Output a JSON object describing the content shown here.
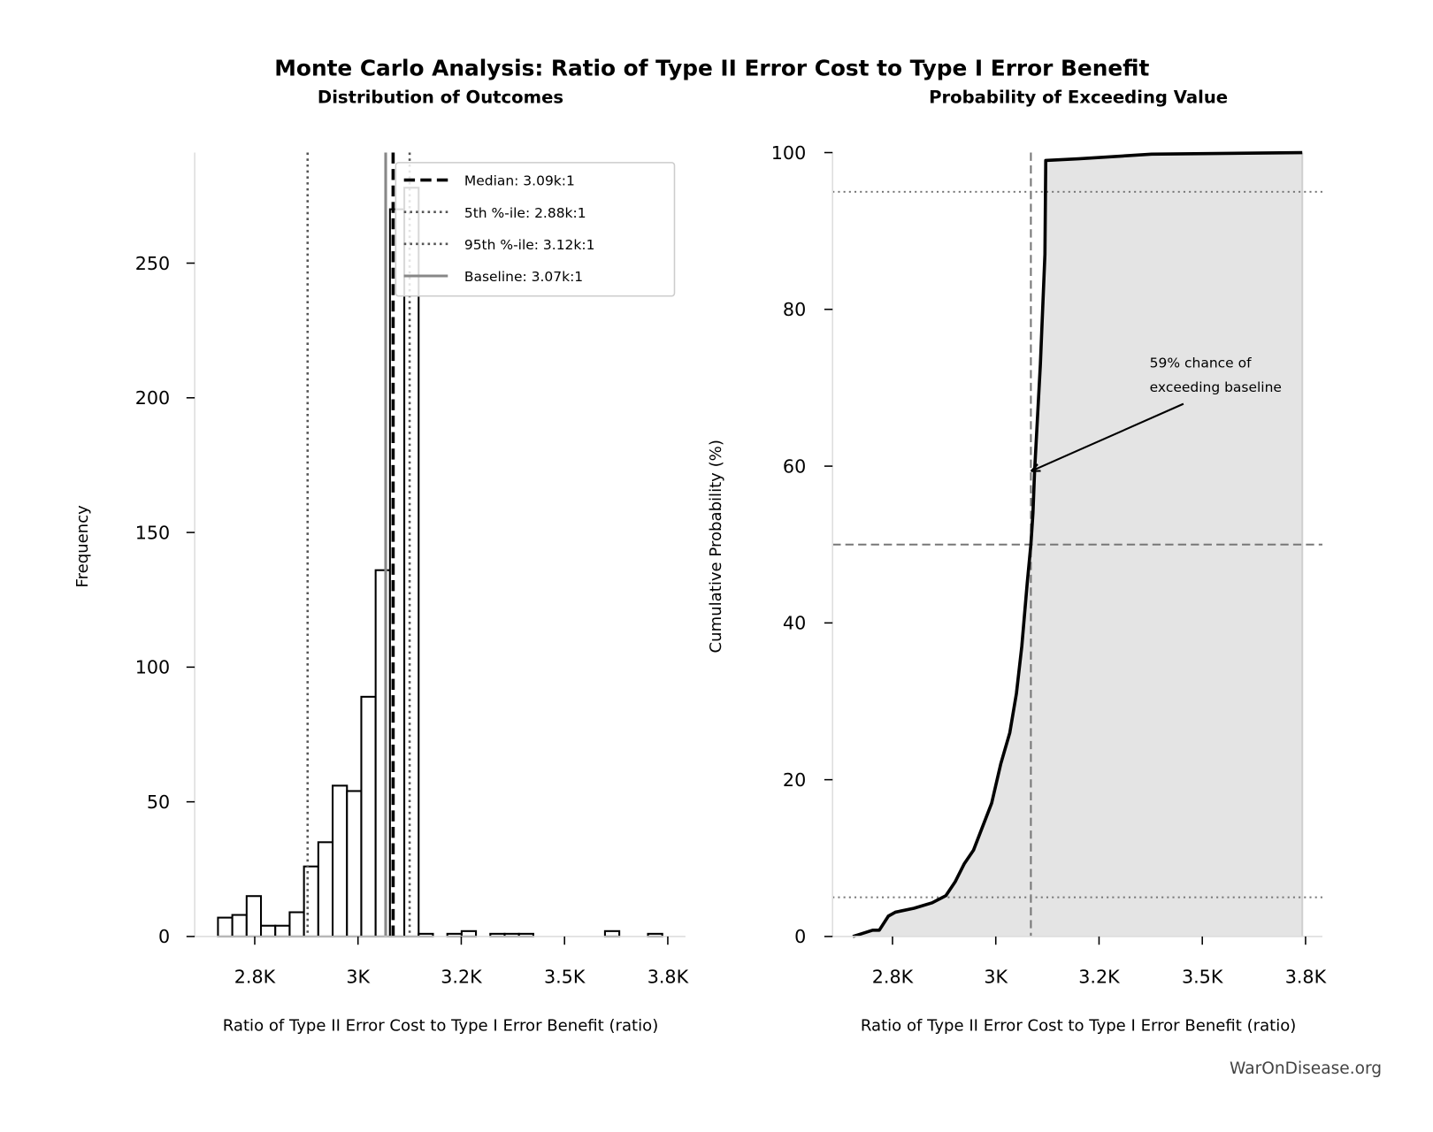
{
  "title": "Monte Carlo Analysis: Ratio of Type II Error Cost to Type I Error Benefit",
  "watermark": "WarOnDisease.org",
  "chart_data": [
    {
      "type": "bar",
      "subtype": "histogram",
      "title": "Distribution of Outcomes",
      "xlabel": "Ratio of Type II Error Cost to Type I Error Benefit (ratio)",
      "ylabel": "Frequency",
      "bin_start": 2661,
      "bin_width": 34.7,
      "counts": [
        7,
        8,
        15,
        4,
        4,
        9,
        26,
        35,
        56,
        54,
        89,
        136,
        270,
        278,
        1,
        0,
        1,
        2,
        0,
        1,
        1,
        1,
        0,
        0,
        0,
        0,
        0,
        2,
        0,
        0,
        1
      ],
      "xlim": [
        2605,
        3785
      ],
      "ylim": [
        0,
        290
      ],
      "xticks": [
        2750,
        3000,
        3250,
        3500,
        3750
      ],
      "xtick_labels": [
        "2.8K",
        "3K",
        "3.2K",
        "3.5K",
        "3.8K"
      ],
      "yticks": [
        0,
        50,
        100,
        150,
        200,
        250
      ],
      "ytick_labels": [
        "0",
        "50",
        "100",
        "150",
        "200",
        "250"
      ],
      "reference_lines": [
        {
          "label": "Median: 3.09k:1",
          "value": 3085,
          "style": "dashed",
          "color": "#000000"
        },
        {
          "label": "5th %-ile: 2.88k:1",
          "value": 2878,
          "style": "dotted",
          "color": "#555555"
        },
        {
          "label": "95th %-ile: 3.12k:1",
          "value": 3125,
          "style": "dotted",
          "color": "#555555"
        },
        {
          "label": "Baseline: 3.07k:1",
          "value": 3067,
          "style": "solid",
          "color": "#888888"
        }
      ],
      "legend_position": "top-right",
      "grid": false
    },
    {
      "type": "area",
      "title": "Probability of Exceeding Value",
      "xlabel": "Ratio of Type II Error Cost to Type I Error Benefit (ratio)",
      "ylabel": "Cumulative Probability (%)",
      "x": [
        2654,
        2702,
        2718,
        2740,
        2757,
        2802,
        2846,
        2879,
        2902,
        2924,
        2946,
        2968,
        2990,
        3012,
        3034,
        3050,
        3063,
        3076,
        3085,
        3090,
        3094,
        3108,
        3119,
        3121,
        3200,
        3377,
        3742
      ],
      "y": [
        0,
        0.8,
        0.8,
        2.6,
        3.1,
        3.6,
        4.3,
        5.2,
        7,
        9.3,
        11,
        14,
        17,
        22,
        26,
        31,
        37,
        45,
        50,
        54,
        59.4,
        73,
        87,
        99,
        99.2,
        99.8,
        100
      ],
      "xlim": [
        2605,
        3785
      ],
      "ylim": [
        0,
        100
      ],
      "xticks": [
        2750,
        3000,
        3250,
        3500,
        3750
      ],
      "xtick_labels": [
        "2.8K",
        "3K",
        "3.2K",
        "3.5K",
        "3.8K"
      ],
      "yticks": [
        0,
        20,
        40,
        60,
        80,
        100
      ],
      "ytick_labels": [
        "0",
        "20",
        "40",
        "60",
        "80",
        "100"
      ],
      "hlines": [
        {
          "value": 95,
          "style": "dotted"
        },
        {
          "value": 50,
          "style": "dashed"
        },
        {
          "value": 5,
          "style": "dotted"
        }
      ],
      "vline": {
        "value": 3085,
        "style": "dashed"
      },
      "annotation": {
        "lines": [
          "59% chance of",
          "exceeding baseline"
        ],
        "point": [
          3085,
          59.4
        ]
      },
      "grid": false
    }
  ]
}
